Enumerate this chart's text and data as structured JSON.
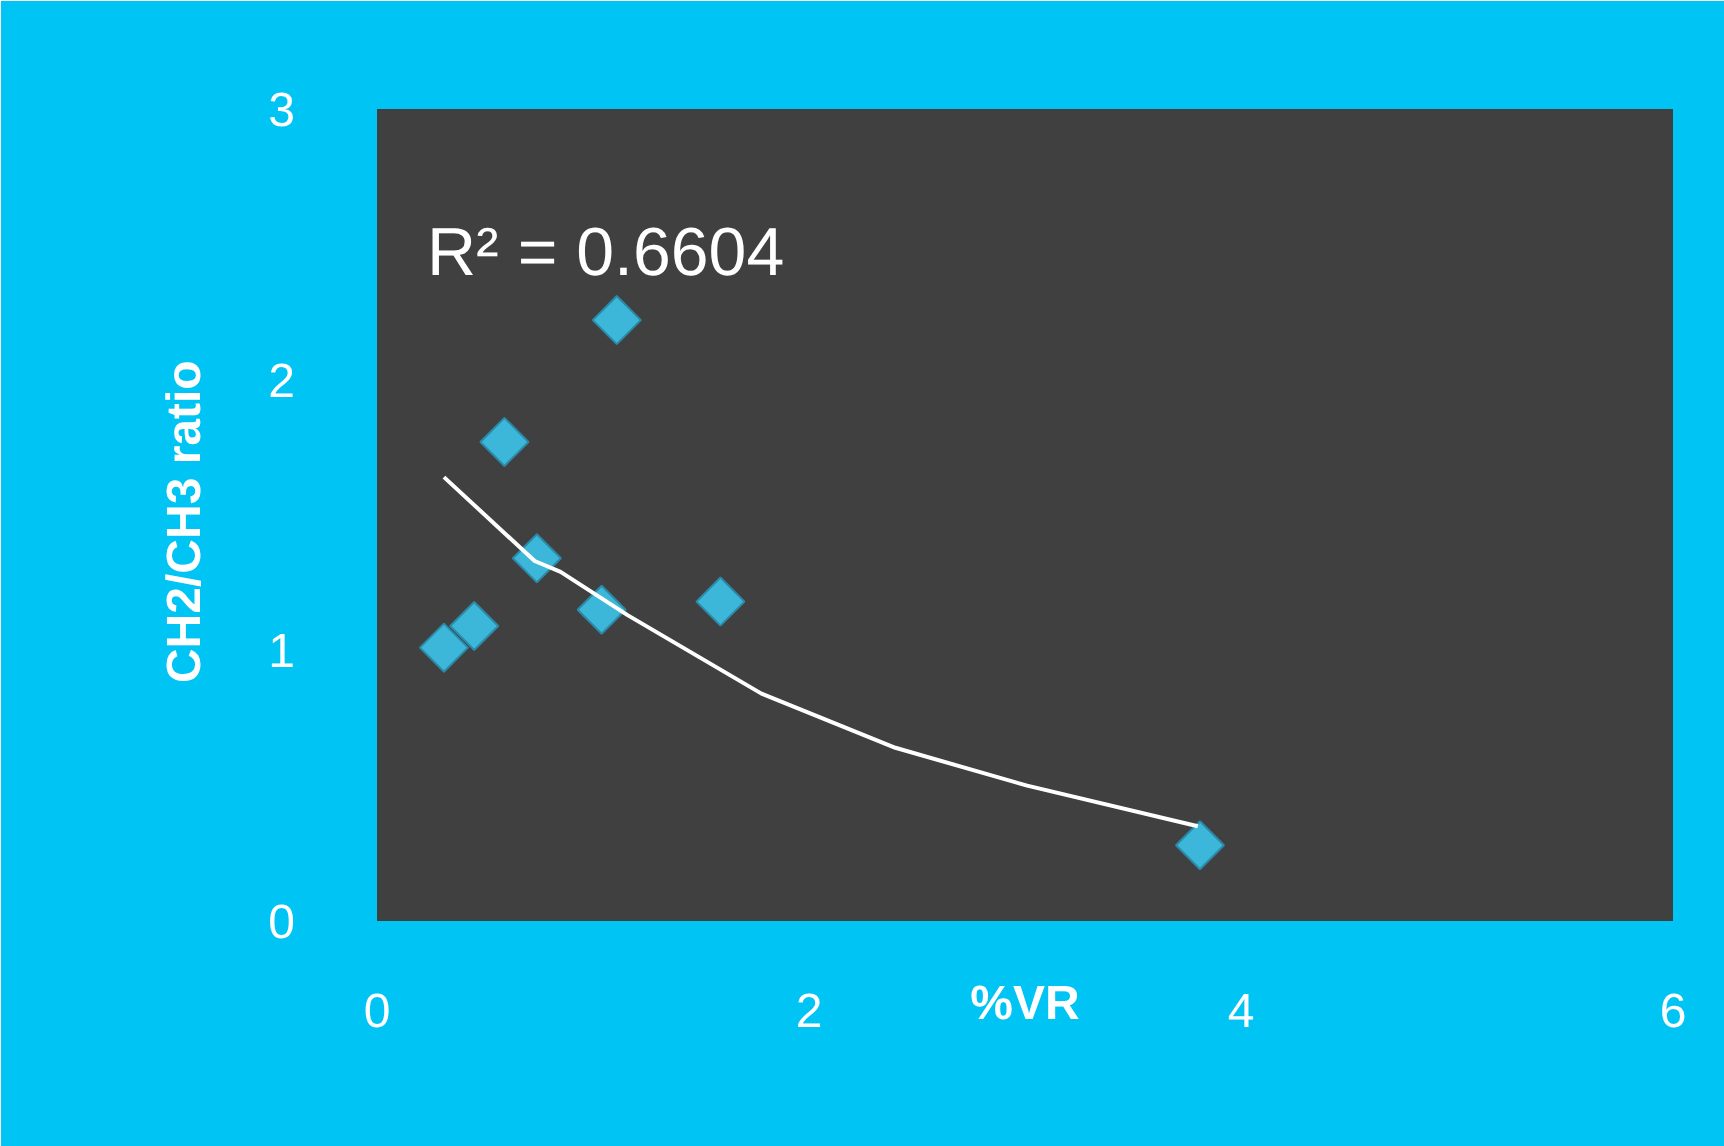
{
  "chart_data": {
    "type": "scatter",
    "xlabel": "%VR",
    "ylabel": "CH2/CH3  ratio",
    "annotations": [
      "R² = 0.6604"
    ],
    "xlim": [
      0,
      6
    ],
    "ylim": [
      0,
      3
    ],
    "xticks": [
      0,
      2,
      4,
      6
    ],
    "yticks": [
      0,
      1,
      2,
      3
    ],
    "grid": false,
    "marker": "diamond",
    "series": [
      {
        "color": "#3db7d9",
        "x": [
          0.31,
          0.45,
          0.59,
          0.74,
          1.04,
          1.11,
          1.59,
          3.81
        ],
        "values": [
          1.01,
          1.09,
          1.77,
          1.34,
          1.15,
          2.22,
          1.18,
          0.28
        ]
      },
      {
        "type": "line",
        "color": "#ffffff",
        "marker": "none",
        "line_style": "solid",
        "x": [
          0.31,
          0.73,
          0.85,
          1.16,
          1.78,
          2.4,
          3.01,
          3.8
        ],
        "values": [
          1.64,
          1.33,
          1.29,
          1.13,
          0.84,
          0.64,
          0.5,
          0.35
        ]
      }
    ]
  }
}
